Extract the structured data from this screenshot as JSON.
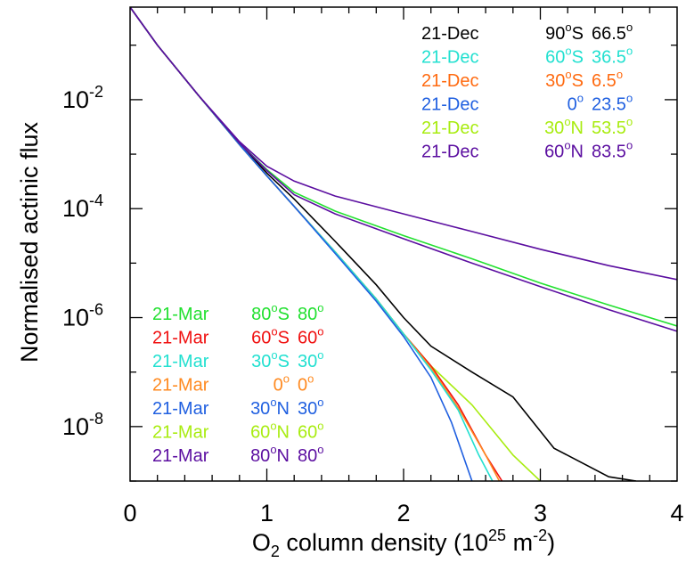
{
  "chart_data": {
    "type": "line",
    "title": "",
    "xlabel": {
      "base": "O",
      "sub": "2",
      "mid": " column density (10",
      "exp1": "25",
      "unit": " m",
      "exp2": "-2",
      "end": ")"
    },
    "ylabel": "Normalised actinic flux",
    "xscale": "linear",
    "yscale": "log",
    "xlim": [
      0,
      4
    ],
    "ylim": [
      1e-09,
      0.5
    ],
    "xticks": [
      0,
      1,
      2,
      3,
      4
    ],
    "xtick_labels": [
      "0",
      "1",
      "2",
      "3",
      "4"
    ],
    "yticks": [
      1e-08,
      1e-06,
      0.0001,
      0.01
    ],
    "ytick_labels": [
      {
        "base": "10",
        "exp": "-8"
      },
      {
        "base": "10",
        "exp": "-6"
      },
      {
        "base": "10",
        "exp": "-4"
      },
      {
        "base": "10",
        "exp": "-2"
      }
    ],
    "grid": false,
    "legends": [
      {
        "placement": "top-right",
        "entries": [
          {
            "color": "#000000",
            "date": "21-Dec",
            "lat": "90",
            "hemi": "S",
            "sza": "66.5"
          },
          {
            "color": "#22e0d0",
            "date": "21-Dec",
            "lat": "60",
            "hemi": "S",
            "sza": "36.5"
          },
          {
            "color": "#ff6a10",
            "date": "21-Dec",
            "lat": "30",
            "hemi": "S",
            "sza": "6.5"
          },
          {
            "color": "#1f5fe0",
            "date": "21-Dec",
            "lat": "0",
            "hemi": "",
            "sza": "23.5"
          },
          {
            "color": "#a8ec10",
            "date": "21-Dec",
            "lat": "30",
            "hemi": "N",
            "sza": "53.5"
          },
          {
            "color": "#5b0ea0",
            "date": "21-Dec",
            "lat": "60",
            "hemi": "N",
            "sza": "83.5"
          }
        ]
      },
      {
        "placement": "bottom-left",
        "entries": [
          {
            "color": "#22e030",
            "date": "21-Mar",
            "lat": "80",
            "hemi": "S",
            "sza": "80"
          },
          {
            "color": "#f01010",
            "date": "21-Mar",
            "lat": "60",
            "hemi": "S",
            "sza": "60"
          },
          {
            "color": "#22e0d0",
            "date": "21-Mar",
            "lat": "30",
            "hemi": "S",
            "sza": "30"
          },
          {
            "color": "#ff8a20",
            "date": "21-Mar",
            "lat": "0",
            "hemi": "",
            "sza": "0"
          },
          {
            "color": "#1f5fe0",
            "date": "21-Mar",
            "lat": "30",
            "hemi": "N",
            "sza": "30"
          },
          {
            "color": "#a8ec10",
            "date": "21-Mar",
            "lat": "60",
            "hemi": "N",
            "sza": "60"
          },
          {
            "color": "#5b0ea0",
            "date": "21-Mar",
            "lat": "80",
            "hemi": "N",
            "sza": "80"
          }
        ]
      }
    ],
    "series": [
      {
        "color": "#000000",
        "x": [
          0,
          0.2,
          0.5,
          0.8,
          1.0,
          1.2,
          1.5,
          1.8,
          2.0,
          2.2,
          2.5,
          2.8,
          3.1,
          3.5,
          3.7
        ],
        "y": [
          0.5,
          0.1,
          0.012,
          0.0016,
          0.00045,
          0.00015,
          2.5e-05,
          4e-06,
          1e-06,
          3e-07,
          1e-07,
          3.5e-08,
          4e-09,
          1.2e-09,
          1e-09
        ]
      },
      {
        "color": "#a8ec10",
        "x": [
          0,
          0.2,
          0.5,
          0.8,
          1.0,
          1.2,
          1.5,
          1.8,
          2.0,
          2.2,
          2.5,
          2.8,
          3.0
        ],
        "y": [
          0.5,
          0.1,
          0.012,
          0.0015,
          0.0004,
          0.00011,
          1.6e-05,
          2.2e-06,
          5e-07,
          1.3e-07,
          2.5e-08,
          3e-09,
          1e-09
        ]
      },
      {
        "color": "#f01010",
        "x": [
          0,
          0.2,
          0.5,
          0.8,
          1.0,
          1.2,
          1.5,
          1.8,
          2.0,
          2.2,
          2.4,
          2.6,
          2.72
        ],
        "y": [
          0.5,
          0.1,
          0.012,
          0.0015,
          0.0004,
          0.00011,
          1.6e-05,
          2.2e-06,
          5e-07,
          1.3e-07,
          2.5e-08,
          3e-09,
          1e-09
        ]
      },
      {
        "color": "#ff8a20",
        "x": [
          0,
          0.2,
          0.5,
          0.8,
          1.0,
          1.2,
          1.5,
          1.8,
          2.0,
          2.2,
          2.4,
          2.6,
          2.7
        ],
        "y": [
          0.5,
          0.1,
          0.012,
          0.0015,
          0.0004,
          0.00011,
          1.6e-05,
          2.2e-06,
          5e-07,
          1.2e-07,
          2.2e-08,
          3e-09,
          1e-09
        ]
      },
      {
        "color": "#22e0d0",
        "x": [
          0,
          0.2,
          0.5,
          0.8,
          1.0,
          1.2,
          1.5,
          1.8,
          2.0,
          2.2,
          2.4,
          2.55,
          2.65
        ],
        "y": [
          0.5,
          0.1,
          0.012,
          0.0015,
          0.0004,
          0.00011,
          1.6e-05,
          2.2e-06,
          5e-07,
          1.1e-07,
          2e-08,
          3e-09,
          1e-09
        ]
      },
      {
        "color": "#1f5fe0",
        "x": [
          0,
          0.2,
          0.5,
          0.8,
          1.0,
          1.2,
          1.5,
          1.8,
          2.0,
          2.2,
          2.35,
          2.5
        ],
        "y": [
          0.5,
          0.1,
          0.012,
          0.0015,
          0.0004,
          0.00011,
          1.5e-05,
          2e-06,
          4.5e-07,
          8e-08,
          1.2e-08,
          1e-09
        ]
      },
      {
        "color": "#22e030",
        "x": [
          0,
          0.2,
          0.5,
          0.8,
          1.0,
          1.2,
          1.5,
          2.0,
          2.5,
          3.0,
          3.5,
          4.0
        ],
        "y": [
          0.5,
          0.1,
          0.012,
          0.0016,
          0.00052,
          0.0002,
          9e-05,
          3.2e-05,
          1.2e-05,
          4.3e-06,
          1.7e-06,
          7e-07
        ]
      },
      {
        "color": "#5b0ea0",
        "x": [
          0,
          0.2,
          0.5,
          0.8,
          1.0,
          1.2,
          1.5,
          2.0,
          2.5,
          3.0,
          3.5,
          4.0
        ],
        "y": [
          0.5,
          0.1,
          0.012,
          0.0016,
          0.0005,
          0.00018,
          8e-05,
          2.8e-05,
          1e-05,
          3.7e-06,
          1.4e-06,
          5.6e-07
        ]
      },
      {
        "color": "#5b0ea0",
        "x": [
          0,
          0.2,
          0.5,
          0.8,
          1.0,
          1.2,
          1.5,
          2.0,
          2.5,
          3.0,
          3.5,
          4.0
        ],
        "y": [
          0.5,
          0.1,
          0.012,
          0.0017,
          0.0006,
          0.00032,
          0.00017,
          8e-05,
          3.8e-05,
          1.8e-05,
          9e-06,
          5e-06
        ]
      }
    ]
  }
}
